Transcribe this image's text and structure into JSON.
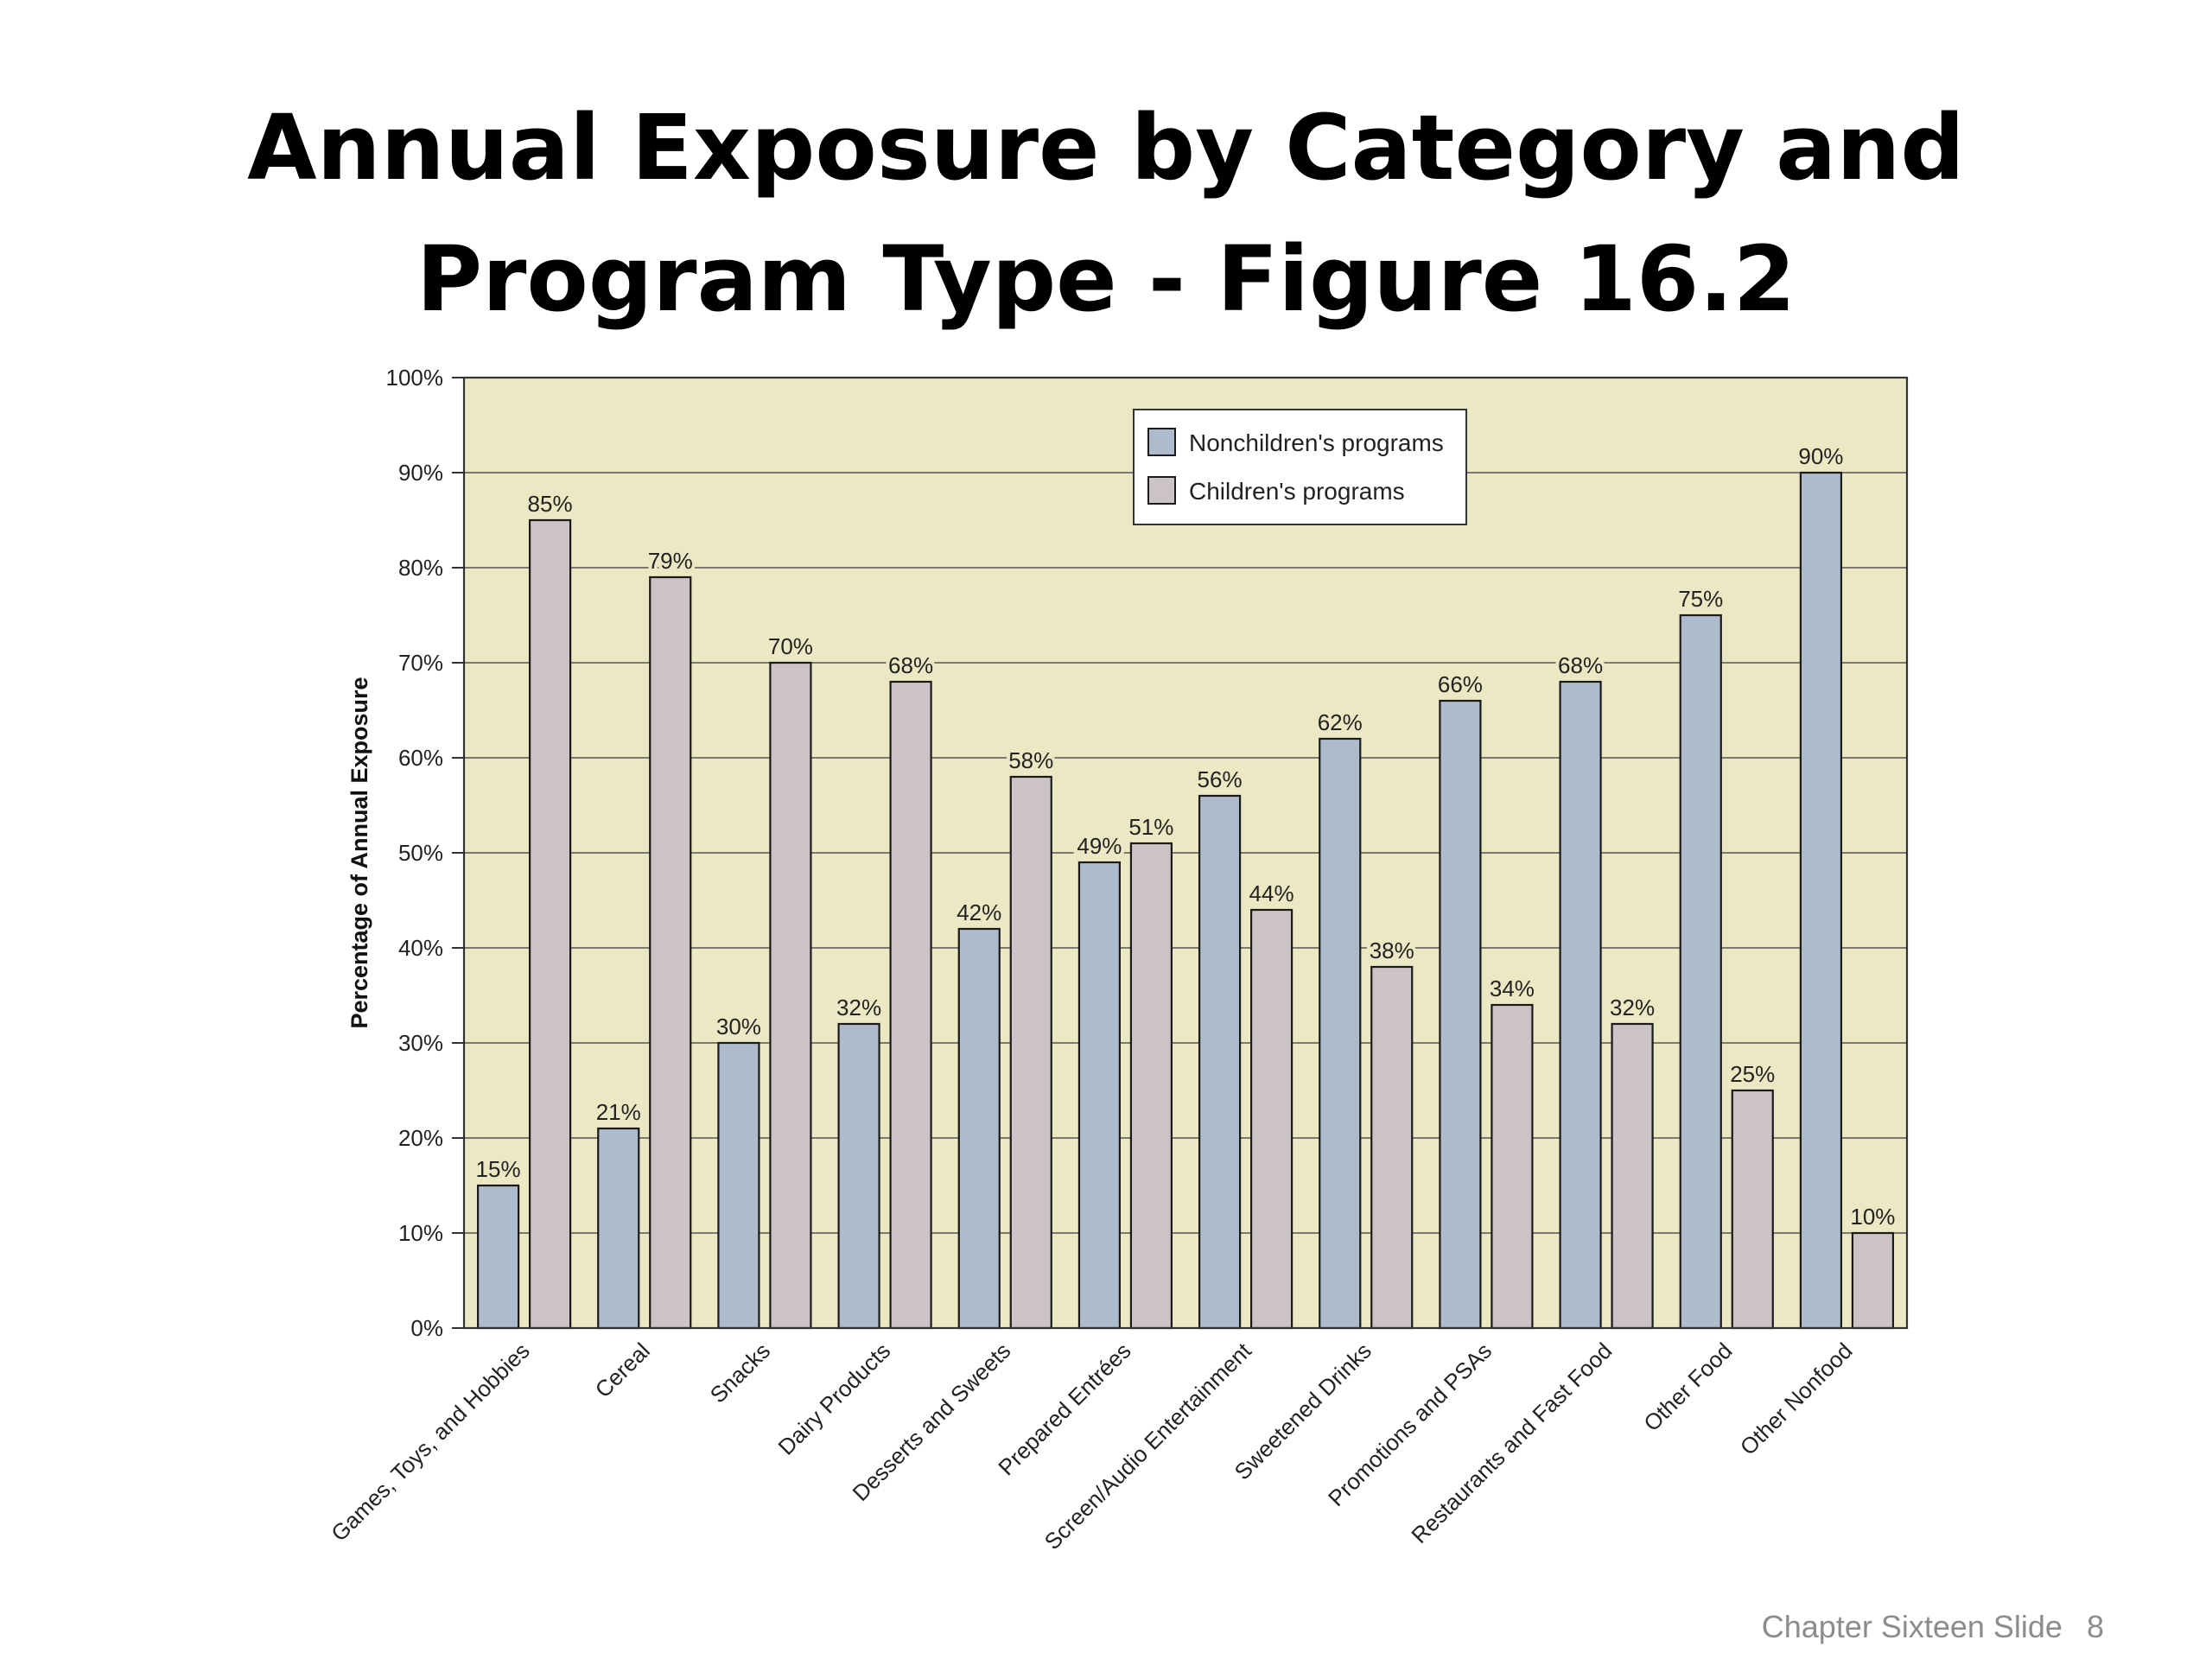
{
  "slide": {
    "title_line1": "Annual Exposure by Category and",
    "title_line2": "Program Type - Figure 16.2",
    "footer_text": "Chapter Sixteen Slide",
    "footer_number": "8"
  },
  "chart_data": {
    "type": "bar",
    "title": "",
    "xlabel": "",
    "ylabel": "Percentage of Annual Exposure",
    "ylim": [
      0,
      100
    ],
    "yticks": [
      "0%",
      "10%",
      "20%",
      "30%",
      "40%",
      "50%",
      "60%",
      "70%",
      "80%",
      "90%",
      "100%"
    ],
    "grid": true,
    "legend_position": "top-center",
    "background_color": "#ede8c4",
    "categories": [
      "Games, Toys, and Hobbies",
      "Cereal",
      "Snacks",
      "Dairy Products",
      "Desserts and Sweets",
      "Prepared Entrées",
      "Screen/Audio Entertainment",
      "Sweetened Drinks",
      "Promotions and PSAs",
      "Restaurants and Fast Food",
      "Other Food",
      "Other Nonfood"
    ],
    "series": [
      {
        "name": "Nonchildren's programs",
        "color": "#aebbcd",
        "values": [
          15,
          21,
          30,
          32,
          42,
          49,
          56,
          62,
          66,
          68,
          75,
          90
        ],
        "labels": [
          "15%",
          "21%",
          "30%",
          "32%",
          "42%",
          "49%",
          "56%",
          "62%",
          "66%",
          "68%",
          "75%",
          "90%"
        ]
      },
      {
        "name": "Children's programs",
        "color": "#ccc3c6",
        "values": [
          85,
          79,
          70,
          68,
          58,
          51,
          44,
          38,
          34,
          32,
          25,
          10
        ],
        "labels": [
          "85%",
          "79%",
          "70%",
          "68%",
          "58%",
          "51%",
          "44%",
          "38%",
          "34%",
          "32%",
          "25%",
          "10%"
        ]
      }
    ]
  }
}
